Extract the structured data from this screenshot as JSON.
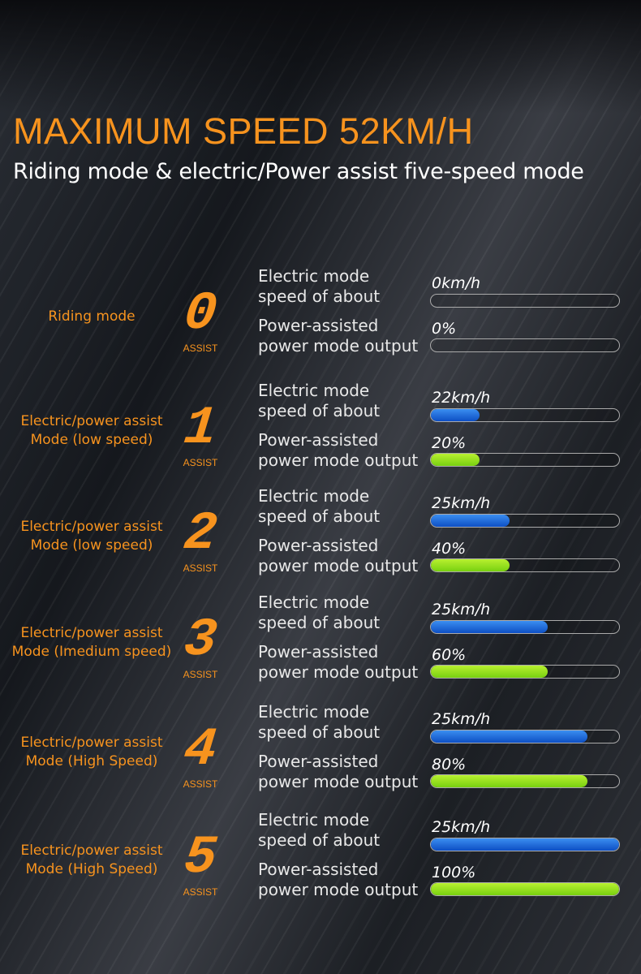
{
  "header": {
    "title": "MAXIMUM SPEED 52KM/H",
    "subtitle": "Riding mode & electric/Power assist five-speed mode"
  },
  "colors": {
    "accent": "#f7931e",
    "speed_bar": "#1a62d8",
    "power_bar": "#9be21e"
  },
  "labels": {
    "electric_line1": "Electric mode",
    "electric_line2": "speed of about",
    "power_line1": "Power-assisted",
    "power_line2": "power mode output",
    "assist": "ASSIST"
  },
  "modes": [
    {
      "name_line1": "Riding mode",
      "name_line2": "",
      "digit": "0",
      "speed": "0km/h",
      "speed_fill": 0,
      "power": "0%",
      "power_fill": 0
    },
    {
      "name_line1": "Electric/power assist",
      "name_line2": "Mode (low speed)",
      "digit": "1",
      "speed": "22km/h",
      "speed_fill": 0.26,
      "power": "20%",
      "power_fill": 0.26
    },
    {
      "name_line1": "Electric/power assist",
      "name_line2": "Mode (low speed)",
      "digit": "2",
      "speed": "25km/h",
      "speed_fill": 0.42,
      "power": "40%",
      "power_fill": 0.42
    },
    {
      "name_line1": "Electric/power assist",
      "name_line2": "Mode (Imedium speed)",
      "digit": "3",
      "speed": "25km/h",
      "speed_fill": 0.62,
      "power": "60%",
      "power_fill": 0.62
    },
    {
      "name_line1": "Electric/power assist",
      "name_line2": "Mode (High Speed)",
      "digit": "4",
      "speed": "25km/h",
      "speed_fill": 0.83,
      "power": "80%",
      "power_fill": 0.83
    },
    {
      "name_line1": "Electric/power assist",
      "name_line2": "Mode (High Speed)",
      "digit": "5",
      "speed": "25km/h",
      "speed_fill": 1,
      "power": "100%",
      "power_fill": 1
    }
  ]
}
